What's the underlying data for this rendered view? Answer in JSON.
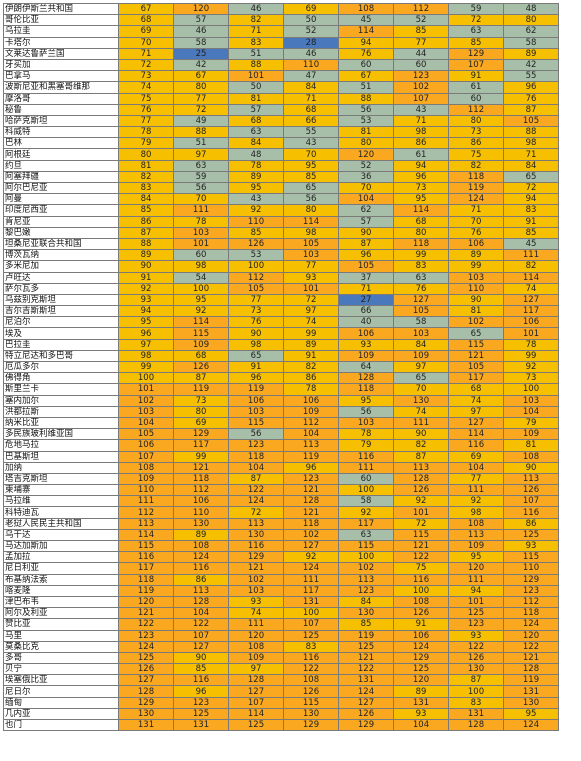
{
  "colors": {
    "yellow": "#f6c000",
    "orange": "#f9a820",
    "green": "#a7bfa9",
    "blue": "#4a78bd"
  },
  "rows": [
    {
      "name": "伊朗伊斯兰共和国",
      "values": [
        67,
        120,
        46,
        69,
        108,
        112,
        59,
        48
      ],
      "styles": [
        "y",
        "o",
        "g",
        "y",
        "o",
        "o",
        "g",
        "g"
      ]
    },
    {
      "name": "哥伦比亚",
      "values": [
        68,
        57,
        82,
        50,
        45,
        52,
        72,
        80
      ],
      "styles": [
        "y",
        "g",
        "y",
        "g",
        "g",
        "g",
        "y",
        "y"
      ]
    },
    {
      "name": "乌拉圭",
      "values": [
        69,
        46,
        71,
        52,
        114,
        85,
        63,
        62
      ],
      "styles": [
        "y",
        "g",
        "y",
        "g",
        "o",
        "y",
        "g",
        "g"
      ]
    },
    {
      "name": "卡塔尔",
      "values": [
        70,
        58,
        83,
        28,
        94,
        77,
        85,
        58
      ],
      "styles": [
        "y",
        "g",
        "y",
        "b",
        "y",
        "y",
        "y",
        "g"
      ]
    },
    {
      "name": "文莱达鲁萨兰国",
      "values": [
        71,
        25,
        51,
        46,
        76,
        44,
        129,
        89
      ],
      "styles": [
        "y",
        "b",
        "g",
        "g",
        "y",
        "g",
        "o",
        "y"
      ]
    },
    {
      "name": "牙买加",
      "values": [
        72,
        42,
        88,
        110,
        60,
        60,
        107,
        42
      ],
      "styles": [
        "y",
        "g",
        "y",
        "o",
        "g",
        "g",
        "o",
        "g"
      ]
    },
    {
      "name": "巴拿马",
      "values": [
        73,
        67,
        101,
        47,
        67,
        123,
        91,
        55
      ],
      "styles": [
        "y",
        "y",
        "o",
        "g",
        "y",
        "o",
        "y",
        "g"
      ]
    },
    {
      "name": "波斯尼亚和黑塞哥维那",
      "values": [
        74,
        80,
        50,
        84,
        51,
        102,
        61,
        96
      ],
      "styles": [
        "y",
        "y",
        "g",
        "y",
        "g",
        "o",
        "g",
        "y"
      ]
    },
    {
      "name": "摩洛哥",
      "values": [
        75,
        77,
        81,
        71,
        88,
        107,
        60,
        76
      ],
      "styles": [
        "y",
        "y",
        "y",
        "y",
        "y",
        "o",
        "g",
        "y"
      ]
    },
    {
      "name": "秘鲁",
      "values": [
        76,
        72,
        57,
        68,
        56,
        43,
        112,
        87
      ],
      "styles": [
        "y",
        "y",
        "g",
        "y",
        "g",
        "g",
        "o",
        "y"
      ]
    },
    {
      "name": "哈萨克斯坦",
      "values": [
        77,
        49,
        68,
        66,
        53,
        71,
        80,
        105
      ],
      "styles": [
        "y",
        "g",
        "y",
        "y",
        "g",
        "y",
        "y",
        "o"
      ]
    },
    {
      "name": "科威特",
      "values": [
        78,
        88,
        63,
        55,
        81,
        98,
        73,
        88
      ],
      "styles": [
        "y",
        "y",
        "g",
        "g",
        "y",
        "y",
        "y",
        "y"
      ]
    },
    {
      "name": "巴林",
      "values": [
        79,
        51,
        84,
        43,
        80,
        86,
        86,
        98
      ],
      "styles": [
        "y",
        "g",
        "y",
        "g",
        "y",
        "y",
        "y",
        "y"
      ]
    },
    {
      "name": "阿根廷",
      "values": [
        80,
        97,
        48,
        70,
        120,
        61,
        75,
        71
      ],
      "styles": [
        "y",
        "y",
        "g",
        "y",
        "o",
        "g",
        "y",
        "y"
      ]
    },
    {
      "name": "约旦",
      "values": [
        81,
        63,
        78,
        95,
        52,
        94,
        82,
        84
      ],
      "styles": [
        "y",
        "g",
        "y",
        "y",
        "g",
        "y",
        "y",
        "y"
      ]
    },
    {
      "name": "阿塞拜疆",
      "values": [
        82,
        59,
        89,
        85,
        36,
        96,
        118,
        65
      ],
      "styles": [
        "y",
        "g",
        "y",
        "y",
        "g",
        "y",
        "o",
        "g"
      ]
    },
    {
      "name": "阿尔巴尼亚",
      "values": [
        83,
        56,
        95,
        65,
        70,
        73,
        119,
        72
      ],
      "styles": [
        "y",
        "g",
        "y",
        "g",
        "y",
        "y",
        "o",
        "y"
      ]
    },
    {
      "name": "阿曼",
      "values": [
        84,
        70,
        43,
        56,
        104,
        95,
        124,
        94
      ],
      "styles": [
        "y",
        "y",
        "g",
        "g",
        "o",
        "y",
        "o",
        "y"
      ]
    },
    {
      "name": "印度尼西亚",
      "values": [
        85,
        111,
        92,
        80,
        62,
        114,
        71,
        83
      ],
      "styles": [
        "y",
        "o",
        "y",
        "y",
        "g",
        "o",
        "y",
        "y"
      ]
    },
    {
      "name": "肯尼亚",
      "values": [
        86,
        78,
        110,
        114,
        57,
        68,
        70,
        91
      ],
      "styles": [
        "y",
        "y",
        "o",
        "o",
        "g",
        "y",
        "y",
        "y"
      ]
    },
    {
      "name": "黎巴嫩",
      "values": [
        87,
        103,
        85,
        98,
        90,
        80,
        76,
        85
      ],
      "styles": [
        "y",
        "o",
        "y",
        "y",
        "y",
        "y",
        "y",
        "y"
      ]
    },
    {
      "name": "坦桑尼亚联合共和国",
      "values": [
        88,
        101,
        126,
        105,
        87,
        118,
        106,
        45
      ],
      "styles": [
        "y",
        "o",
        "o",
        "o",
        "y",
        "o",
        "o",
        "g"
      ]
    },
    {
      "name": "博茨瓦纳",
      "values": [
        89,
        60,
        53,
        103,
        96,
        99,
        89,
        111
      ],
      "styles": [
        "y",
        "g",
        "g",
        "o",
        "y",
        "y",
        "y",
        "o"
      ]
    },
    {
      "name": "多米尼加",
      "values": [
        90,
        98,
        100,
        77,
        105,
        83,
        99,
        82
      ],
      "styles": [
        "y",
        "y",
        "y",
        "y",
        "o",
        "y",
        "y",
        "y"
      ]
    },
    {
      "name": "卢旺达",
      "values": [
        91,
        54,
        112,
        93,
        37,
        63,
        103,
        114
      ],
      "styles": [
        "y",
        "g",
        "o",
        "y",
        "g",
        "g",
        "o",
        "o"
      ]
    },
    {
      "name": "萨尔瓦多",
      "values": [
        92,
        100,
        105,
        101,
        71,
        76,
        110,
        74
      ],
      "styles": [
        "y",
        "y",
        "o",
        "o",
        "y",
        "y",
        "o",
        "y"
      ]
    },
    {
      "name": "乌兹别克斯坦",
      "values": [
        93,
        95,
        77,
        72,
        27,
        127,
        90,
        127
      ],
      "styles": [
        "y",
        "y",
        "y",
        "y",
        "b",
        "o",
        "y",
        "o"
      ]
    },
    {
      "name": "吉尔吉斯斯坦",
      "values": [
        94,
        92,
        73,
        97,
        66,
        105,
        81,
        117
      ],
      "styles": [
        "y",
        "y",
        "y",
        "y",
        "g",
        "o",
        "y",
        "o"
      ]
    },
    {
      "name": "尼泊尔",
      "values": [
        95,
        114,
        76,
        74,
        40,
        58,
        102,
        106
      ],
      "styles": [
        "y",
        "o",
        "y",
        "y",
        "g",
        "g",
        "o",
        "o"
      ]
    },
    {
      "name": "埃及",
      "values": [
        96,
        115,
        90,
        99,
        106,
        103,
        65,
        101
      ],
      "styles": [
        "y",
        "o",
        "y",
        "y",
        "o",
        "o",
        "g",
        "o"
      ]
    },
    {
      "name": "巴拉圭",
      "values": [
        97,
        109,
        98,
        89,
        93,
        84,
        115,
        78
      ],
      "styles": [
        "y",
        "o",
        "y",
        "y",
        "y",
        "y",
        "o",
        "y"
      ]
    },
    {
      "name": "特立尼达和多巴哥",
      "values": [
        98,
        68,
        65,
        91,
        109,
        109,
        121,
        99
      ],
      "styles": [
        "y",
        "y",
        "g",
        "y",
        "o",
        "o",
        "o",
        "y"
      ]
    },
    {
      "name": "厄瓜多尔",
      "values": [
        99,
        126,
        91,
        82,
        64,
        97,
        105,
        92
      ],
      "styles": [
        "y",
        "o",
        "y",
        "y",
        "g",
        "y",
        "o",
        "y"
      ]
    },
    {
      "name": "佛得角",
      "values": [
        100,
        87,
        96,
        86,
        128,
        65,
        117,
        73
      ],
      "styles": [
        "y",
        "y",
        "y",
        "y",
        "o",
        "g",
        "o",
        "y"
      ]
    },
    {
      "name": "斯里兰卡",
      "values": [
        101,
        119,
        119,
        78,
        118,
        70,
        68,
        100
      ],
      "styles": [
        "o",
        "o",
        "o",
        "y",
        "o",
        "y",
        "y",
        "y"
      ]
    },
    {
      "name": "塞内加尔",
      "values": [
        102,
        73,
        106,
        106,
        95,
        130,
        74,
        103
      ],
      "styles": [
        "o",
        "y",
        "o",
        "o",
        "y",
        "o",
        "y",
        "o"
      ]
    },
    {
      "name": "洪都拉斯",
      "values": [
        103,
        80,
        103,
        109,
        56,
        74,
        97,
        104
      ],
      "styles": [
        "o",
        "y",
        "o",
        "o",
        "g",
        "y",
        "y",
        "o"
      ]
    },
    {
      "name": "纳米比亚",
      "values": [
        104,
        69,
        115,
        112,
        103,
        111,
        127,
        79
      ],
      "styles": [
        "o",
        "y",
        "o",
        "o",
        "o",
        "o",
        "o",
        "y"
      ]
    },
    {
      "name": "多民族玻利维亚国",
      "values": [
        105,
        129,
        56,
        104,
        78,
        90,
        114,
        109
      ],
      "styles": [
        "o",
        "o",
        "g",
        "o",
        "y",
        "y",
        "o",
        "o"
      ]
    },
    {
      "name": "危地马拉",
      "values": [
        106,
        117,
        123,
        113,
        79,
        82,
        116,
        81
      ],
      "styles": [
        "o",
        "o",
        "o",
        "o",
        "y",
        "y",
        "o",
        "y"
      ]
    },
    {
      "name": "巴基斯坦",
      "values": [
        107,
        99,
        118,
        119,
        116,
        87,
        69,
        108
      ],
      "styles": [
        "o",
        "y",
        "o",
        "o",
        "o",
        "y",
        "y",
        "o"
      ]
    },
    {
      "name": "加纳",
      "values": [
        108,
        121,
        104,
        96,
        111,
        113,
        104,
        90
      ],
      "styles": [
        "o",
        "o",
        "o",
        "y",
        "o",
        "o",
        "o",
        "y"
      ]
    },
    {
      "name": "塔吉克斯坦",
      "values": [
        109,
        118,
        87,
        123,
        60,
        128,
        77,
        113
      ],
      "styles": [
        "o",
        "o",
        "y",
        "o",
        "g",
        "o",
        "y",
        "o"
      ]
    },
    {
      "name": "柬埔寨",
      "values": [
        110,
        112,
        122,
        121,
        100,
        126,
        111,
        126
      ],
      "styles": [
        "o",
        "o",
        "o",
        "o",
        "y",
        "o",
        "o",
        "o"
      ]
    },
    {
      "name": "马拉维",
      "values": [
        111,
        106,
        124,
        128,
        58,
        92,
        92,
        107
      ],
      "styles": [
        "o",
        "o",
        "o",
        "o",
        "g",
        "y",
        "y",
        "o"
      ]
    },
    {
      "name": "科特迪瓦",
      "values": [
        112,
        110,
        72,
        121,
        92,
        101,
        98,
        116
      ],
      "styles": [
        "o",
        "o",
        "y",
        "o",
        "y",
        "o",
        "y",
        "o"
      ]
    },
    {
      "name": "老挝人民民主共和国",
      "values": [
        113,
        130,
        113,
        118,
        117,
        72,
        108,
        86
      ],
      "styles": [
        "o",
        "o",
        "o",
        "o",
        "o",
        "y",
        "o",
        "y"
      ]
    },
    {
      "name": "乌干达",
      "values": [
        114,
        89,
        130,
        102,
        63,
        115,
        113,
        125
      ],
      "styles": [
        "o",
        "y",
        "o",
        "o",
        "g",
        "o",
        "o",
        "o"
      ]
    },
    {
      "name": "马达加斯加",
      "values": [
        115,
        108,
        116,
        127,
        115,
        121,
        109,
        93
      ],
      "styles": [
        "o",
        "o",
        "o",
        "o",
        "o",
        "o",
        "o",
        "y"
      ]
    },
    {
      "name": "孟加拉",
      "values": [
        116,
        124,
        129,
        92,
        100,
        122,
        95,
        115
      ],
      "styles": [
        "o",
        "o",
        "o",
        "y",
        "y",
        "o",
        "y",
        "o"
      ]
    },
    {
      "name": "尼日利亚",
      "values": [
        117,
        116,
        121,
        124,
        102,
        75,
        120,
        110
      ],
      "styles": [
        "o",
        "o",
        "o",
        "o",
        "o",
        "y",
        "o",
        "o"
      ]
    },
    {
      "name": "布基纳法索",
      "values": [
        118,
        86,
        102,
        111,
        113,
        116,
        111,
        129
      ],
      "styles": [
        "o",
        "y",
        "o",
        "o",
        "o",
        "o",
        "o",
        "o"
      ]
    },
    {
      "name": "喀麦隆",
      "values": [
        119,
        113,
        103,
        117,
        123,
        100,
        94,
        123
      ],
      "styles": [
        "o",
        "o",
        "o",
        "o",
        "o",
        "y",
        "y",
        "o"
      ]
    },
    {
      "name": "津巴布韦",
      "values": [
        120,
        128,
        93,
        131,
        84,
        108,
        101,
        112
      ],
      "styles": [
        "o",
        "o",
        "y",
        "o",
        "y",
        "o",
        "o",
        "o"
      ]
    },
    {
      "name": "阿尔及利亚",
      "values": [
        121,
        104,
        74,
        100,
        130,
        126,
        125,
        118
      ],
      "styles": [
        "o",
        "o",
        "y",
        "y",
        "o",
        "o",
        "o",
        "o"
      ]
    },
    {
      "name": "赞比亚",
      "values": [
        122,
        122,
        111,
        107,
        85,
        91,
        123,
        124
      ],
      "styles": [
        "o",
        "o",
        "o",
        "o",
        "y",
        "y",
        "o",
        "o"
      ]
    },
    {
      "name": "马里",
      "values": [
        123,
        107,
        120,
        125,
        119,
        106,
        93,
        120
      ],
      "styles": [
        "o",
        "o",
        "o",
        "o",
        "o",
        "o",
        "y",
        "o"
      ]
    },
    {
      "name": "莫桑比克",
      "values": [
        124,
        127,
        108,
        83,
        125,
        124,
        122,
        122
      ],
      "styles": [
        "o",
        "o",
        "o",
        "y",
        "o",
        "o",
        "o",
        "o"
      ]
    },
    {
      "name": "多哥",
      "values": [
        125,
        90,
        109,
        116,
        121,
        129,
        126,
        121
      ],
      "styles": [
        "o",
        "y",
        "o",
        "o",
        "o",
        "o",
        "o",
        "o"
      ]
    },
    {
      "name": "贝宁",
      "values": [
        126,
        85,
        97,
        122,
        122,
        125,
        130,
        128
      ],
      "styles": [
        "o",
        "y",
        "y",
        "o",
        "o",
        "o",
        "o",
        "o"
      ]
    },
    {
      "name": "埃塞俄比亚",
      "values": [
        127,
        116,
        128,
        108,
        131,
        120,
        87,
        119
      ],
      "styles": [
        "o",
        "o",
        "o",
        "o",
        "o",
        "o",
        "y",
        "o"
      ]
    },
    {
      "name": "尼日尔",
      "values": [
        128,
        96,
        127,
        126,
        124,
        89,
        100,
        131
      ],
      "styles": [
        "o",
        "y",
        "o",
        "o",
        "o",
        "y",
        "y",
        "o"
      ]
    },
    {
      "name": "缅甸",
      "values": [
        129,
        123,
        107,
        115,
        127,
        131,
        83,
        130
      ],
      "styles": [
        "o",
        "o",
        "o",
        "o",
        "o",
        "o",
        "y",
        "o"
      ]
    },
    {
      "name": "几内亚",
      "values": [
        130,
        125,
        114,
        130,
        126,
        93,
        131,
        95
      ],
      "styles": [
        "o",
        "o",
        "o",
        "o",
        "o",
        "y",
        "o",
        "y"
      ]
    },
    {
      "name": "也门",
      "values": [
        131,
        131,
        125,
        129,
        129,
        104,
        128,
        124
      ],
      "styles": [
        "o",
        "o",
        "o",
        "o",
        "o",
        "o",
        "o",
        "o"
      ]
    }
  ]
}
